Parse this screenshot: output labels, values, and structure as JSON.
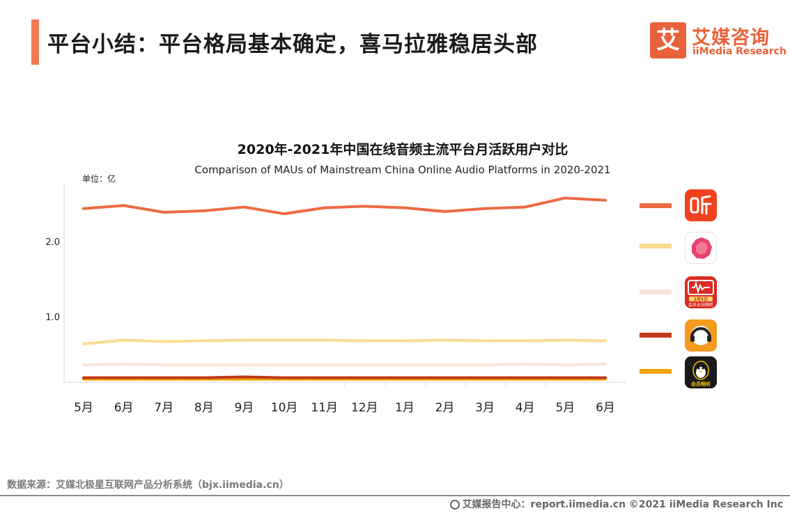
{
  "header": {
    "title": "平台小结：平台格局基本确定，喜马拉雅稳居头部",
    "accent_color": "#ef7a52"
  },
  "logo": {
    "mark": "艾",
    "name_cn": "艾媒咨询",
    "name_en": "iiMedia Research",
    "color": "#e8613a"
  },
  "chart_data": {
    "type": "line",
    "title": "2020年-2021年中国在线音频主流平台月活跃用户对比",
    "subtitle": "Comparison of MAUs of Mainstream China Online Audio Platforms in 2020-2021",
    "unit_label": "单位：亿",
    "categories": [
      "5月",
      "6月",
      "7月",
      "8月",
      "9月",
      "10月",
      "11月",
      "12月",
      "1月",
      "2月",
      "3月",
      "4月",
      "5月",
      "6月"
    ],
    "ylim": [
      0.15,
      2.8
    ],
    "yticks": [
      "1.0",
      "2.0"
    ],
    "grid": false,
    "legend_position": "right",
    "series": [
      {
        "icon": "ximalaya-app-icon",
        "color": "#ee6a43",
        "values": [
          2.45,
          2.49,
          2.4,
          2.42,
          2.47,
          2.38,
          2.46,
          2.48,
          2.46,
          2.41,
          2.45,
          2.47,
          2.59,
          2.56
        ]
      },
      {
        "icon": "lizhi-app-icon",
        "color": "#f9dc91",
        "values": [
          0.65,
          0.7,
          0.68,
          0.69,
          0.7,
          0.7,
          0.7,
          0.69,
          0.69,
          0.7,
          0.69,
          0.69,
          0.7,
          0.69
        ]
      },
      {
        "icon": "qingting-fm-app-icon",
        "color": "#f8e3d7",
        "values": [
          0.37,
          0.38,
          0.37,
          0.37,
          0.37,
          0.37,
          0.37,
          0.37,
          0.37,
          0.37,
          0.37,
          0.38,
          0.37,
          0.38
        ]
      },
      {
        "icon": "kuwo-changting-app-icon",
        "color": "#c13a18",
        "values": [
          0.2,
          0.2,
          0.2,
          0.2,
          0.21,
          0.2,
          0.2,
          0.2,
          0.2,
          0.2,
          0.2,
          0.2,
          0.2,
          0.2
        ]
      },
      {
        "icon": "qq-audio-app-icon",
        "color": "#f0a30a",
        "values": [
          0.18,
          0.18,
          0.18,
          0.18,
          0.18,
          0.18,
          0.18,
          0.18,
          0.18,
          0.18,
          0.18,
          0.18,
          0.18,
          0.18
        ]
      }
    ]
  },
  "legend_icons": {
    "qingting_badge_text": "2月5日",
    "qingting_caption": "会员全站畅听",
    "qq_caption": "会员畅听"
  },
  "source": "数据来源：艾媒北极星互联网产品分析系统（bjx.iimedia.cn）",
  "footer": "艾媒报告中心：report.iimedia.cn  ©2021  iiMedia Research  Inc"
}
